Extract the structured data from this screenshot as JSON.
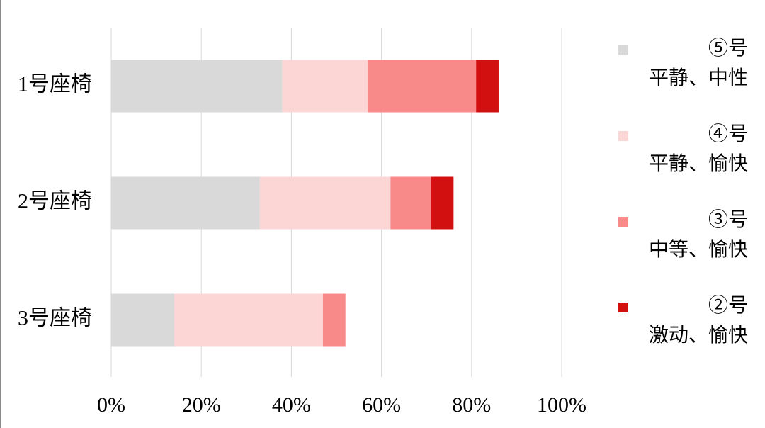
{
  "chart_data": {
    "type": "stacked-bar-horizontal",
    "categories": [
      "1号座椅",
      "2号座椅",
      "3号座椅"
    ],
    "series": [
      {
        "name": "⑤号\n平静、中性",
        "color": "#d9d9d9",
        "values": [
          38,
          33,
          14
        ]
      },
      {
        "name": "④号\n平静、愉快",
        "color": "#fcd5d5",
        "values": [
          19,
          29,
          33
        ]
      },
      {
        "name": "③号\n中等、愉快",
        "color": "#f88a8a",
        "values": [
          24,
          9,
          5
        ]
      },
      {
        "name": "②号\n激动、愉快",
        "color": "#d21010",
        "values": [
          5,
          5,
          null
        ]
      }
    ],
    "xlim": [
      0,
      100
    ],
    "xticks": [
      {
        "value": 0,
        "label": "0%"
      },
      {
        "value": 20,
        "label": "20%"
      },
      {
        "value": 40,
        "label": "40%"
      },
      {
        "value": 60,
        "label": "60%"
      },
      {
        "value": 80,
        "label": "80%"
      },
      {
        "value": 100,
        "label": "100%"
      }
    ],
    "grid": true,
    "legend": "right"
  }
}
